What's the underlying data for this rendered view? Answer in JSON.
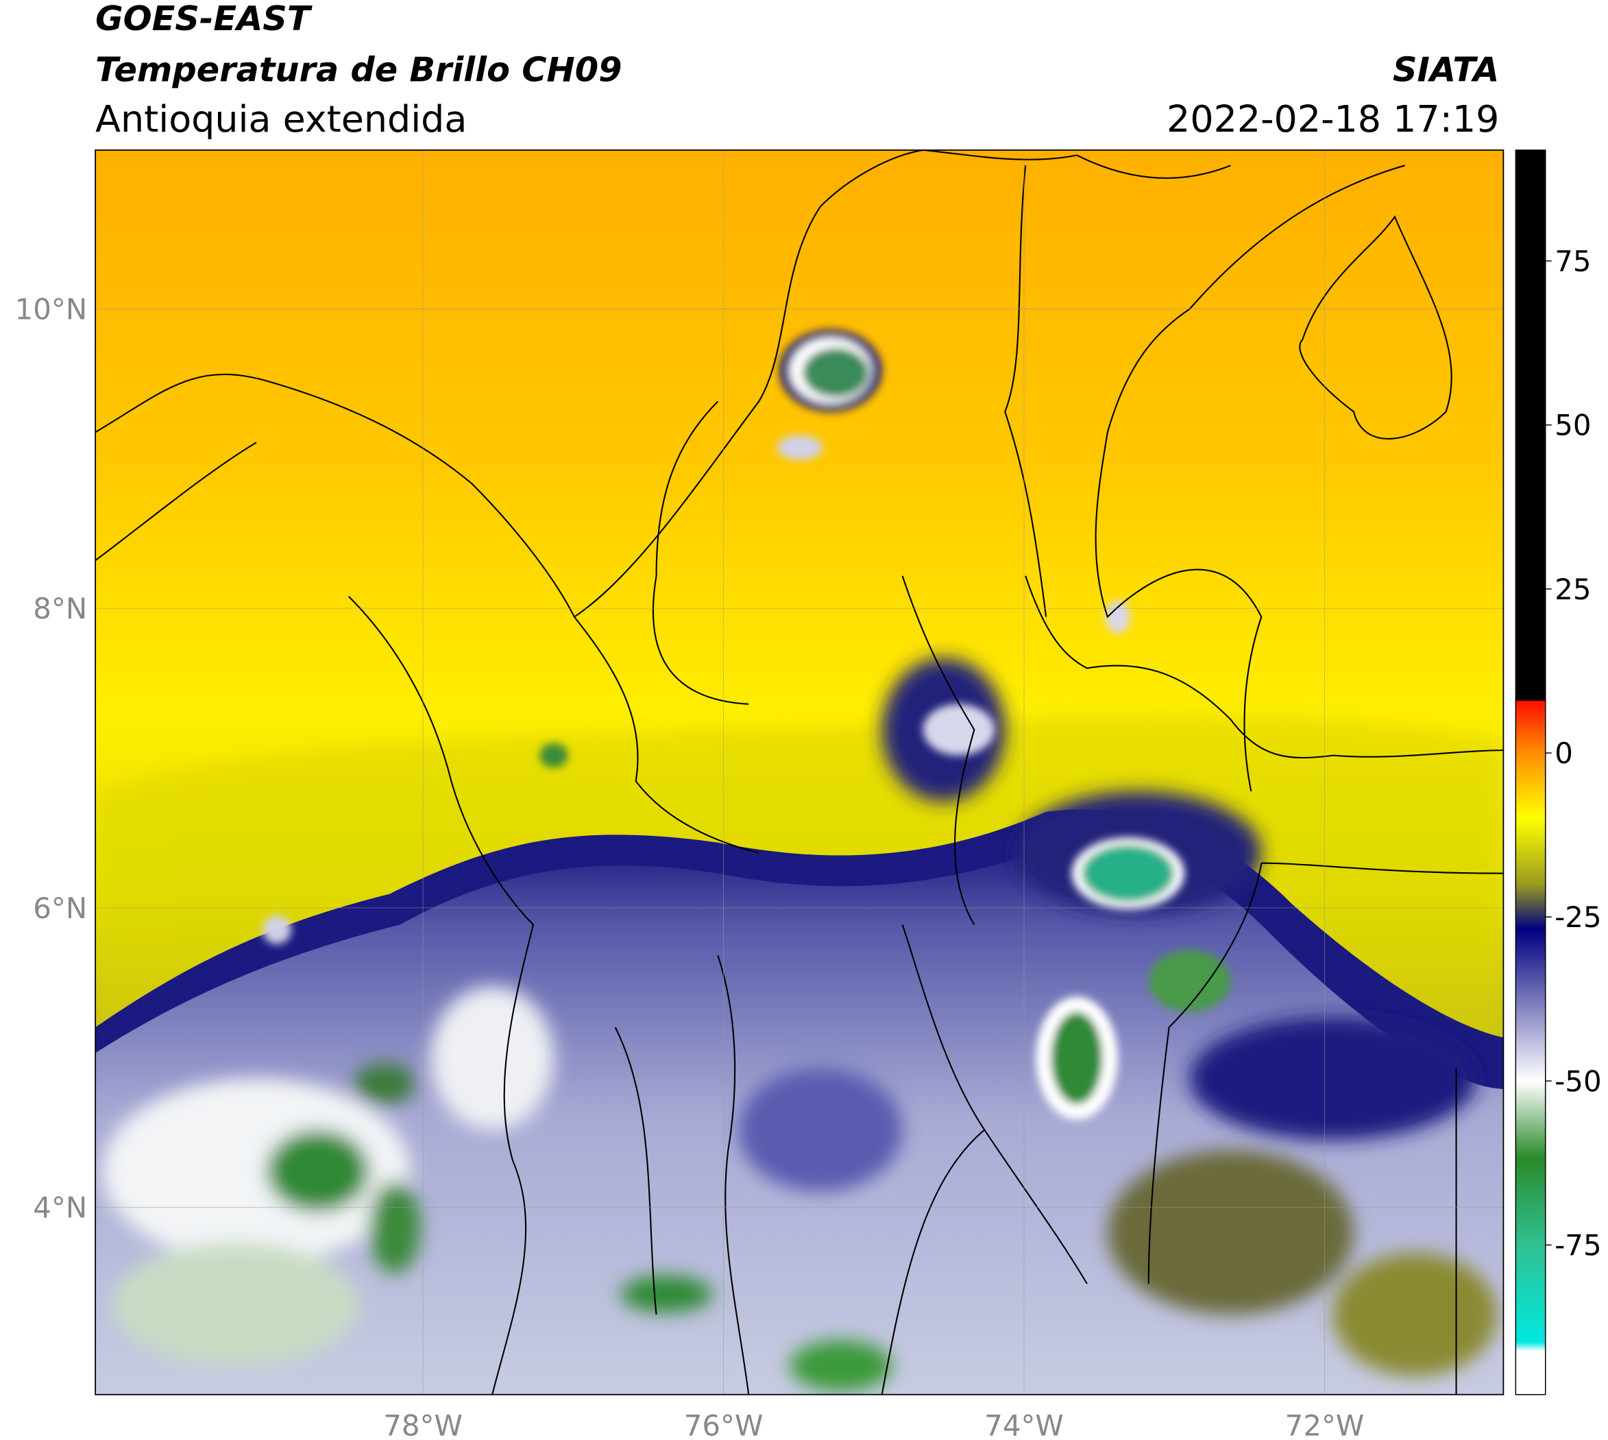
{
  "header": {
    "title": "GOES-EAST",
    "subtitle": "Temperatura de Brillo CH09",
    "region": "Antioquia extendida",
    "agency": "SIATA",
    "datetime": "2022-02-18 17:19"
  },
  "map": {
    "xlim": [
      -80.18,
      -70.81
    ],
    "ylim": [
      2.75,
      11.06
    ],
    "xticks": [
      {
        "value": -78,
        "label": "78°W"
      },
      {
        "value": -76,
        "label": "76°W"
      },
      {
        "value": -74,
        "label": "74°W"
      },
      {
        "value": -72,
        "label": "72°W"
      }
    ],
    "yticks": [
      {
        "value": 4,
        "label": "4°N"
      },
      {
        "value": 6,
        "label": "6°N"
      },
      {
        "value": 8,
        "label": "8°N"
      },
      {
        "value": 10,
        "label": "10°N"
      }
    ]
  },
  "colorbar": {
    "lim": [
      -97.8,
      91.9
    ],
    "ticks": [
      75,
      50,
      25,
      0,
      -25,
      -50,
      -75
    ]
  }
}
